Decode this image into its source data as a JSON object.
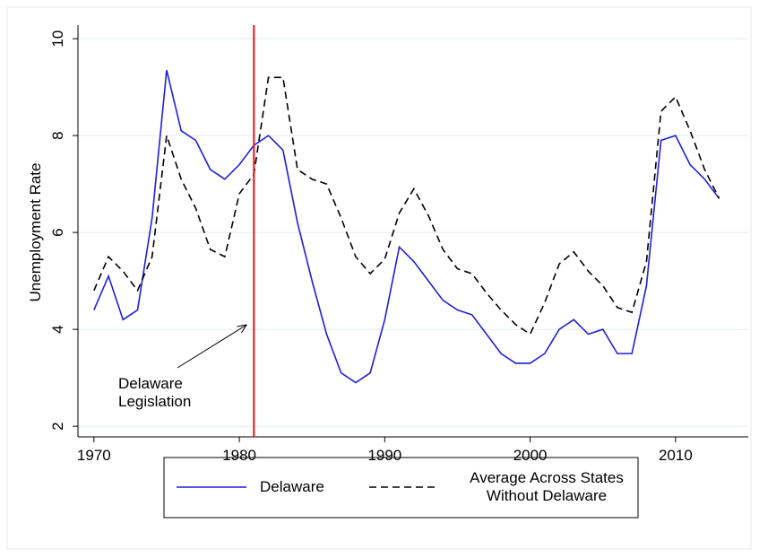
{
  "chart_data": {
    "type": "line",
    "y_label": "Unemployment Rate",
    "x": [
      1970,
      1971,
      1972,
      1973,
      1974,
      1975,
      1976,
      1977,
      1978,
      1979,
      1980,
      1981,
      1982,
      1983,
      1984,
      1985,
      1986,
      1987,
      1988,
      1989,
      1990,
      1991,
      1992,
      1993,
      1994,
      1995,
      1996,
      1997,
      1998,
      1999,
      2000,
      2001,
      2002,
      2003,
      2004,
      2005,
      2006,
      2007,
      2008,
      2009,
      2010,
      2011,
      2012,
      2013
    ],
    "series": [
      {
        "name": "Delaware",
        "color": "#1f1fd8",
        "dash": false,
        "values": [
          4.4,
          5.1,
          4.2,
          4.4,
          6.3,
          9.35,
          8.1,
          7.9,
          7.3,
          7.1,
          7.4,
          7.8,
          8.0,
          7.7,
          6.2,
          5.0,
          3.9,
          3.1,
          2.9,
          3.1,
          4.2,
          5.7,
          5.4,
          5.0,
          4.6,
          4.4,
          4.3,
          3.9,
          3.5,
          3.3,
          3.3,
          3.5,
          4.0,
          4.2,
          3.9,
          4.0,
          3.5,
          3.5,
          4.9,
          7.9,
          8.0,
          7.4,
          7.1,
          6.7
        ]
      },
      {
        "name": "Average Across States Without Delaware",
        "color": "#000000",
        "dash": true,
        "values": [
          4.8,
          5.5,
          5.2,
          4.8,
          5.5,
          8.0,
          7.1,
          6.5,
          5.65,
          5.5,
          6.8,
          7.2,
          9.2,
          9.2,
          7.3,
          7.1,
          7.0,
          6.3,
          5.5,
          5.15,
          5.45,
          6.4,
          6.9,
          6.35,
          5.65,
          5.25,
          5.15,
          4.75,
          4.4,
          4.1,
          3.9,
          4.55,
          5.35,
          5.6,
          5.2,
          4.9,
          4.45,
          4.35,
          5.4,
          8.5,
          8.8,
          8.1,
          7.3,
          6.7
        ]
      }
    ],
    "vline": {
      "x": 1981,
      "color": "#e8141c"
    },
    "annotation": "Delaware Legislation",
    "xlim": [
      1968.9,
      2015
    ],
    "ylim": [
      1.78,
      10.28
    ],
    "xticks": [
      1970,
      1980,
      1990,
      2000,
      2010
    ],
    "yticks": [
      2,
      4,
      6,
      8,
      10
    ],
    "grid": true
  }
}
